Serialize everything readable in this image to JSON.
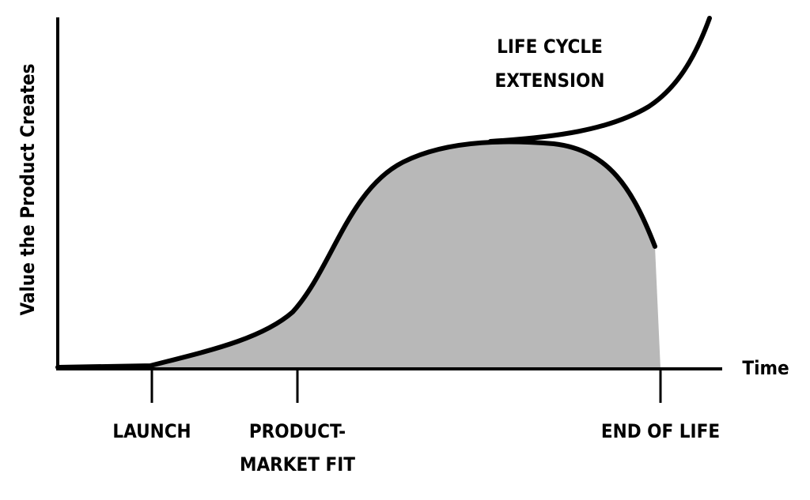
{
  "axes": {
    "y_label": "Value the Product Creates",
    "x_label": "Time"
  },
  "milestones": [
    {
      "lines": [
        "LAUNCH"
      ]
    },
    {
      "lines": [
        "PRODUCT-",
        "MARKET FIT"
      ]
    },
    {
      "lines": [
        "END OF LIFE"
      ]
    }
  ],
  "annotation": {
    "lines": [
      "LIFE CYCLE",
      "EXTENSION"
    ]
  }
}
